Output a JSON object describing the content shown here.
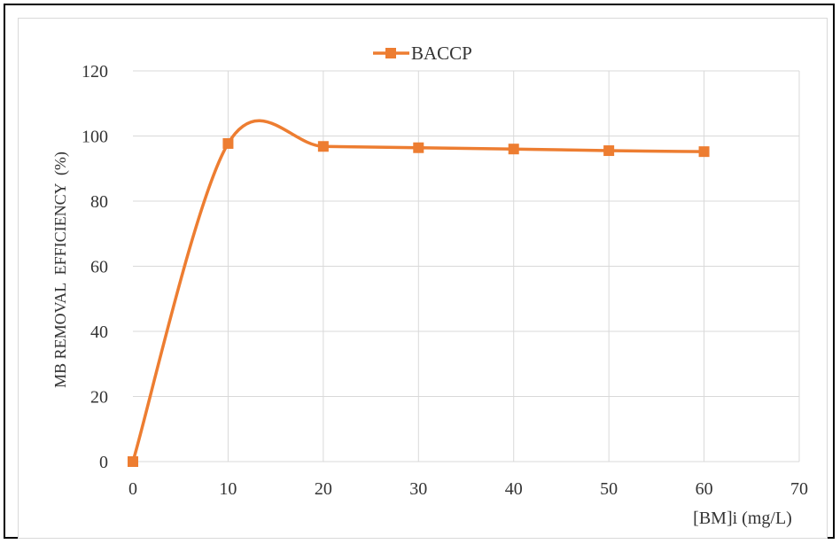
{
  "chart_data": {
    "type": "line",
    "title": "",
    "xlabel": "[BM]i (mg/L)",
    "ylabel": "MB REMOVAL  EFFICIENCY  (%)",
    "xlim": [
      0,
      70
    ],
    "ylim": [
      0,
      120
    ],
    "xticks": [
      "0",
      "10",
      "20",
      "30",
      "40",
      "50",
      "60",
      "70"
    ],
    "yticks": [
      "0",
      "20",
      "40",
      "60",
      "80",
      "100",
      "120"
    ],
    "grid": true,
    "smooth": true,
    "legend_position": "top-center",
    "series": [
      {
        "name": "BACCP",
        "color": "#ED7D31",
        "marker": "square",
        "x": [
          0,
          10,
          20,
          30,
          40,
          50,
          60
        ],
        "y": [
          0,
          97.7,
          96.8,
          96.4,
          96.0,
          95.5,
          95.2
        ]
      }
    ]
  }
}
